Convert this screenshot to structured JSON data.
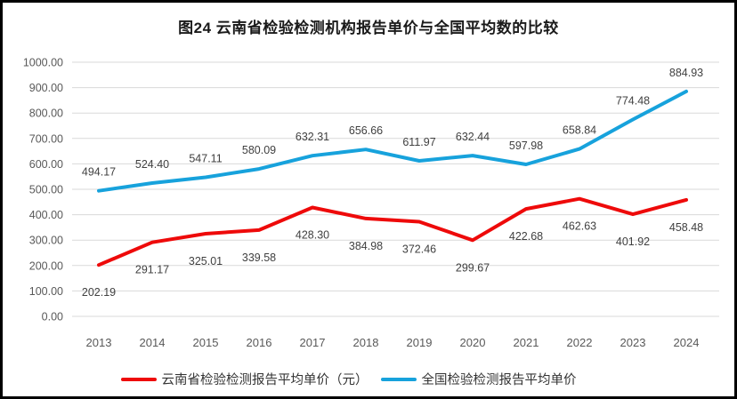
{
  "chart_data": {
    "type": "line",
    "title": "图24 云南省检验检测机构报告单价与全国平均数的比较",
    "x": [
      "2013",
      "2014",
      "2015",
      "2016",
      "2017",
      "2018",
      "2019",
      "2020",
      "2021",
      "2022",
      "2023",
      "2024"
    ],
    "series": [
      {
        "name": "云南省检验检测报告平均单价（元）",
        "color": "#ee0a0a",
        "label_position": "below",
        "values": [
          202.19,
          291.17,
          325.01,
          339.58,
          428.3,
          384.98,
          372.46,
          299.67,
          422.68,
          462.63,
          401.92,
          458.48
        ]
      },
      {
        "name": "全国检验检测报告平均单价",
        "color": "#17a2dc",
        "label_position": "above",
        "values": [
          494.17,
          524.4,
          547.11,
          580.09,
          632.31,
          656.66,
          611.97,
          632.44,
          597.98,
          658.84,
          774.48,
          884.93
        ]
      }
    ],
    "ylim": [
      0,
      1000
    ],
    "ytick_step": 100,
    "ytick_decimals": 2,
    "grid": true,
    "legend_position": "bottom",
    "colors": {
      "axis_text": "#595959",
      "data_label": "#404040",
      "gridline": "#d9d9d9",
      "title_text": "#1a1a1a"
    }
  }
}
